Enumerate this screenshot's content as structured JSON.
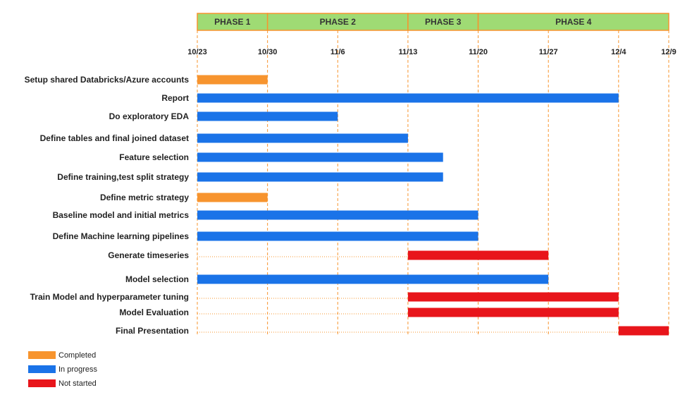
{
  "chart_data": {
    "type": "gantt",
    "phases": [
      {
        "label": "PHASE 1",
        "start": "10/23",
        "end": "10/30"
      },
      {
        "label": "PHASE 2",
        "start": "10/30",
        "end": "11/13"
      },
      {
        "label": "PHASE 3",
        "start": "11/13",
        "end": "11/20"
      },
      {
        "label": "PHASE 4",
        "start": "11/20",
        "end": "12/9"
      }
    ],
    "dates": [
      "10/23",
      "10/30",
      "11/6",
      "11/13",
      "11/20",
      "11/27",
      "12/4",
      "12/9"
    ],
    "tasks": [
      {
        "label": "Setup shared Databricks/Azure accounts",
        "start": "10/23",
        "end": "10/30",
        "status": "completed"
      },
      {
        "label": "Report",
        "start": "10/23",
        "end": "12/4",
        "status": "in_progress"
      },
      {
        "label": "Do exploratory EDA",
        "start": "10/23",
        "end": "11/6",
        "status": "in_progress"
      },
      {
        "label": "Define tables and final joined dataset",
        "start": "10/23",
        "end": "11/13",
        "status": "in_progress"
      },
      {
        "label": "Feature selection",
        "start": "10/23",
        "end": "11/16.5",
        "status": "in_progress"
      },
      {
        "label": "Define training,test split strategy",
        "start": "10/23",
        "end": "11/16.5",
        "status": "in_progress"
      },
      {
        "label": "Define metric strategy",
        "start": "10/23",
        "end": "10/30",
        "status": "completed"
      },
      {
        "label": "Baseline model and initial metrics",
        "start": "10/23",
        "end": "11/20",
        "status": "in_progress"
      },
      {
        "label": "Define Machine learning pipelines",
        "start": "10/23",
        "end": "11/20",
        "status": "in_progress"
      },
      {
        "label": "Generate timeseries",
        "start": "11/13",
        "end": "11/27",
        "status": "not_started"
      },
      {
        "label": "Model selection",
        "start": "10/23",
        "end": "11/27",
        "status": "in_progress"
      },
      {
        "label": "Train Model and hyperparameter tuning",
        "start": "11/13",
        "end": "12/4",
        "status": "not_started"
      },
      {
        "label": "Model Evaluation",
        "start": "11/13",
        "end": "12/4",
        "status": "not_started"
      },
      {
        "label": "Final Presentation",
        "start": "12/4",
        "end": "12/9",
        "status": "not_started"
      }
    ],
    "legend": [
      {
        "status": "completed",
        "label": "Completed",
        "color": "#f7942e"
      },
      {
        "status": "in_progress",
        "label": "In progress",
        "color": "#1a73e8"
      },
      {
        "status": "not_started",
        "label": "Not started",
        "color": "#e8151b"
      }
    ],
    "colors": {
      "phase_fill": "#9fdb74",
      "phase_border": "#f7942e",
      "gridline": "#f7942e"
    },
    "legend_placement": "bottom-left"
  }
}
